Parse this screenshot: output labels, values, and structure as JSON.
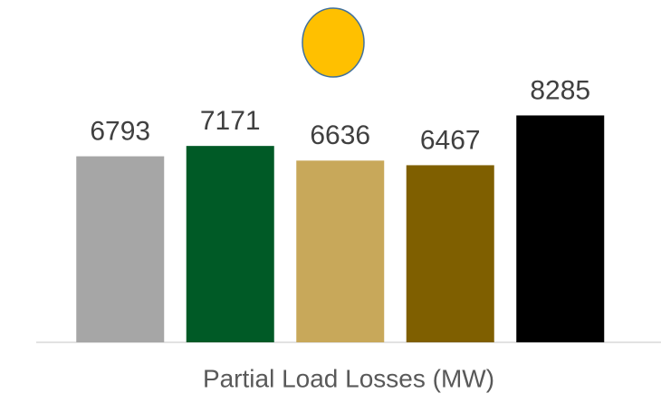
{
  "chart_data": {
    "type": "bar",
    "x_label": "Partial Load Losses (MW)",
    "categories": [
      null,
      null,
      null,
      null,
      null
    ],
    "values": [
      6793,
      7171,
      6636,
      6467,
      8285
    ],
    "colors": [
      "#a6a6a6",
      "#005a26",
      "#c8a85a",
      "#7f5f00",
      "#000000"
    ],
    "ylim": [
      0,
      12500
    ]
  }
}
